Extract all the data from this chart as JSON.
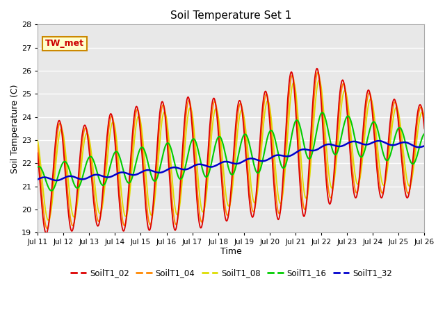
{
  "title": "Soil Temperature Set 1",
  "xlabel": "Time",
  "ylabel": "Soil Temperature (C)",
  "ylim": [
    19.0,
    28.0
  ],
  "yticks": [
    19.0,
    20.0,
    21.0,
    22.0,
    23.0,
    24.0,
    25.0,
    26.0,
    27.0,
    28.0
  ],
  "x_labels": [
    "Jul 11",
    "Jul 12",
    "Jul 13",
    "Jul 14",
    "Jul 15",
    "Jul 16",
    "Jul 17",
    "Jul 18",
    "Jul 19",
    "Jul 20",
    "Jul 21",
    "Jul 22",
    "Jul 23",
    "Jul 24",
    "Jul 25",
    "Jul 26"
  ],
  "series_colors": {
    "SoilT1_02": "#dd0000",
    "SoilT1_04": "#ff8800",
    "SoilT1_08": "#dddd00",
    "SoilT1_16": "#00cc00",
    "SoilT1_32": "#0000cc"
  },
  "annotation_text": "TW_met",
  "annotation_color": "#cc0000",
  "annotation_bg": "#ffffcc",
  "annotation_border": "#cc8800",
  "plot_bg_color": "#e8e8e8",
  "phase_peak": 0.583,
  "days": 15,
  "pts_per_day": 48
}
